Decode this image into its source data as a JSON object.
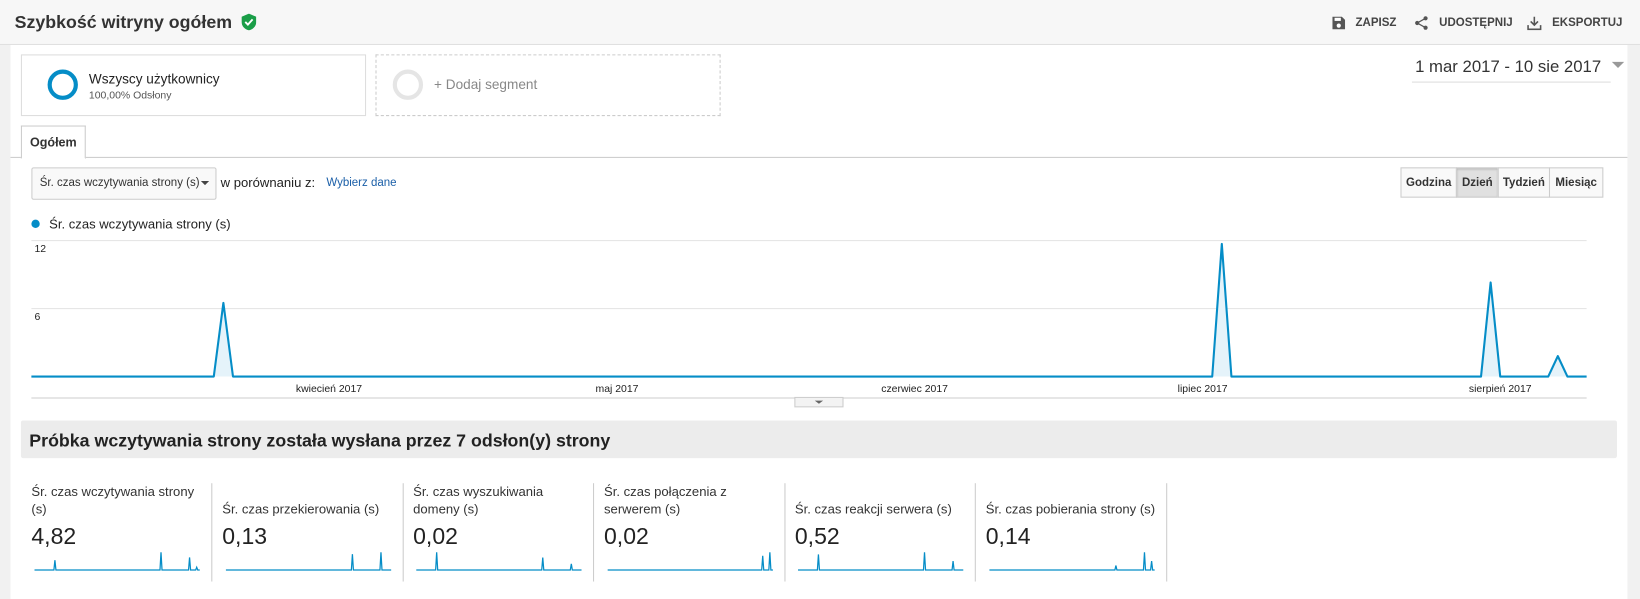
{
  "header": {
    "title": "Szybkość witryny ogółem",
    "actions": [
      "ZAPISZ",
      "UDOSTĘPNIJ",
      "EKSPORTUJ"
    ]
  },
  "segments": [
    {
      "name": "Wszyscy użytkownicy",
      "detail": "100,00% Odsłony"
    }
  ],
  "add_segment": "+ Dodaj segment",
  "date_range": "1 mar 2017 - 10 sie 2017",
  "tab": "Ogółem",
  "controls": {
    "metric_select": "Śr. czas wczytywania strony (s)",
    "compare_label": "w porównaniu z:",
    "compare_link": "Wybierz dane",
    "granularity": [
      "Godzina",
      "Dzień",
      "Tydzień",
      "Miesiąc"
    ],
    "active_granularity": 1
  },
  "chart_data": {
    "type": "line",
    "x": [
      0,
      19,
      20,
      21,
      123,
      124,
      125,
      151,
      152,
      153,
      158,
      159,
      160,
      162
    ],
    "series": [
      {
        "name": "Śr. czas wczytywania strony (s)",
        "color": "#058dc7",
        "values": [
          0,
          0,
          6.5,
          0,
          0,
          11.7,
          0,
          0,
          8.3,
          0,
          0,
          1.8,
          0,
          0
        ]
      }
    ],
    "xlim": [
      0,
      162
    ],
    "xticks": [
      {
        "value": 31,
        "label": "kwiecień 2017"
      },
      {
        "value": 61,
        "label": "maj 2017"
      },
      {
        "value": 92,
        "label": "czerwiec 2017"
      },
      {
        "value": 122,
        "label": "lipiec 2017"
      },
      {
        "value": 153,
        "label": "sierpień 2017"
      }
    ],
    "ylim": [
      0,
      12
    ],
    "yticks": [
      6,
      12
    ],
    "grid": true
  },
  "summary": "Próbka wczytywania strony została wysłana przez 7 odsłon(y) strony",
  "metrics": [
    {
      "label": "Śr. czas wczytywania strony (s)",
      "value": "4,82",
      "sparkline": {
        "x": [
          0,
          19,
          20,
          21,
          123,
          124,
          125,
          151,
          152,
          153,
          158,
          159,
          160,
          162
        ],
        "values": [
          0,
          0,
          6.5,
          0,
          0,
          11.7,
          0,
          0,
          8.3,
          0,
          0,
          1.8,
          0,
          0
        ]
      }
    },
    {
      "label": "Śr. czas przekierowania (s)",
      "value": "0,13",
      "sparkline": {
        "x": [
          0,
          123,
          124,
          125,
          151,
          152,
          153,
          162
        ],
        "values": [
          0,
          0,
          0.8,
          0,
          0,
          0.9,
          0,
          0
        ]
      }
    },
    {
      "label": "Śr. czas wyszukiwania domeny (s)",
      "value": "0,02",
      "sparkline": {
        "x": [
          0,
          19,
          20,
          21,
          123,
          124,
          125,
          151,
          152,
          153,
          162
        ],
        "values": [
          0,
          0,
          0.1,
          0,
          0,
          0.07,
          0,
          0,
          0.035,
          0,
          0
        ]
      }
    },
    {
      "label": "Śr. czas połączenia z serwerem (s)",
      "value": "0,02",
      "sparkline": {
        "x": [
          0,
          151,
          152,
          153,
          158,
          159,
          160,
          162
        ],
        "values": [
          0,
          0,
          0.08,
          0,
          0,
          0.1,
          0,
          0
        ]
      }
    },
    {
      "label": "Śr. czas reakcji serwera (s)",
      "value": "0,52",
      "sparkline": {
        "x": [
          0,
          19,
          20,
          21,
          123,
          124,
          125,
          151,
          152,
          153,
          162
        ],
        "values": [
          0,
          0,
          1.4,
          0,
          0,
          1.6,
          0,
          0,
          0.8,
          0,
          0
        ]
      }
    },
    {
      "label": "Śr. czas pobierania strony (s)",
      "value": "0,14",
      "sparkline": {
        "x": [
          0,
          123,
          124,
          125,
          151,
          152,
          153,
          158,
          159,
          160,
          162
        ],
        "values": [
          0,
          0,
          0.1,
          0,
          0,
          0.4,
          0,
          0,
          0.2,
          0,
          0
        ]
      }
    }
  ]
}
